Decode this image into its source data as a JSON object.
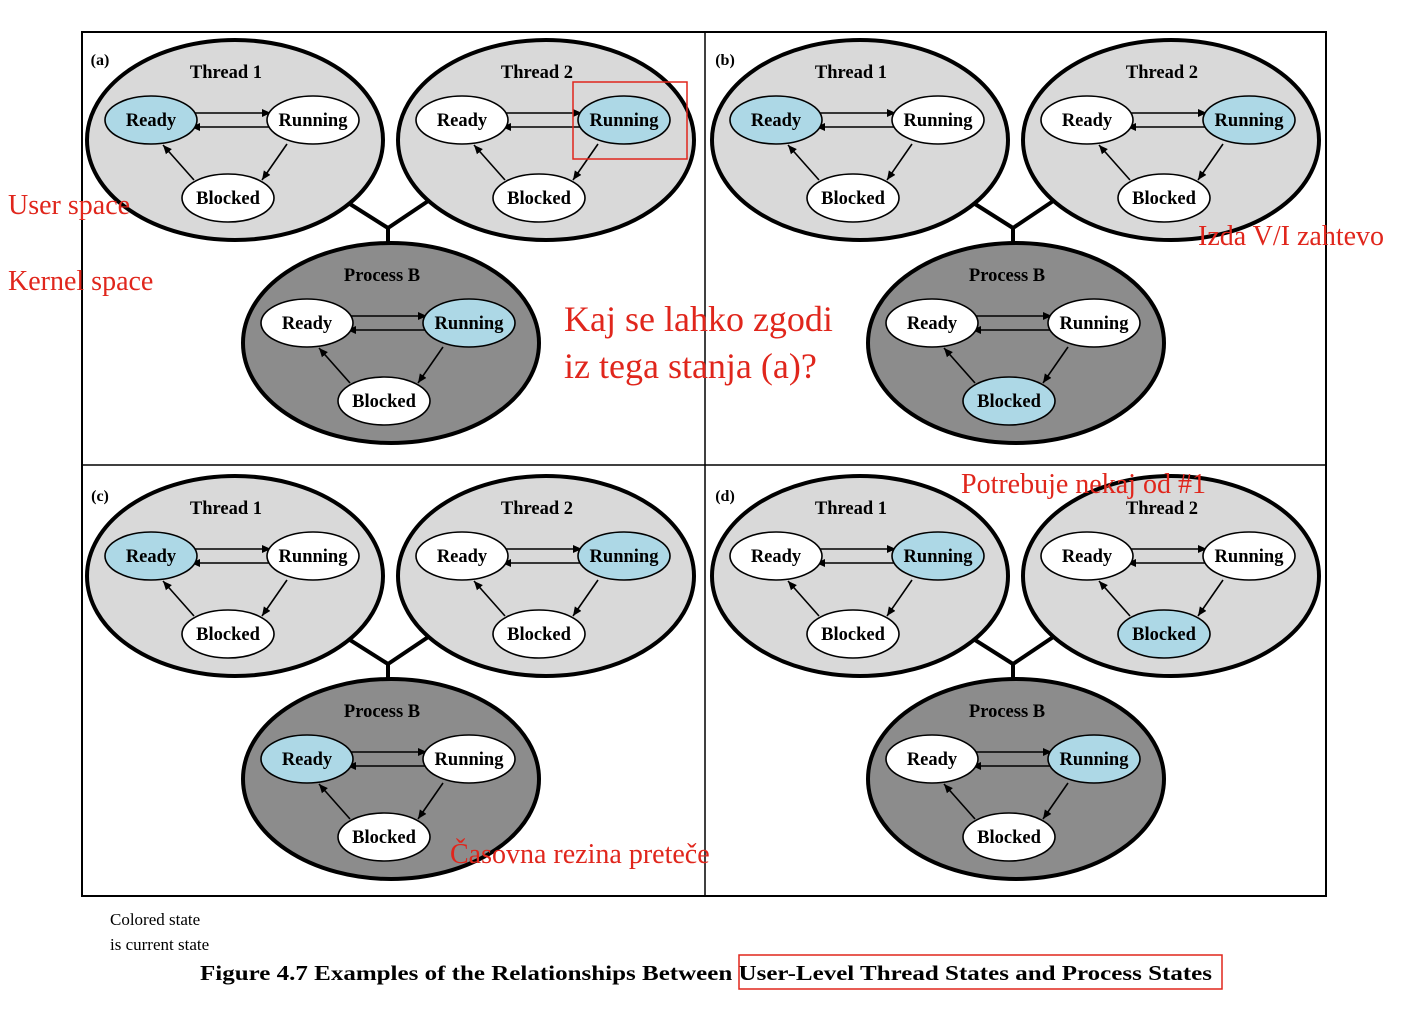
{
  "state_labels": {
    "ready": "Ready",
    "running": "Running",
    "blocked": "Blocked"
  },
  "group_labels": {
    "thread1": "Thread 1",
    "thread2": "Thread 2",
    "process": "Process B"
  },
  "panels": [
    {
      "id": "a",
      "label": "(a)",
      "thread1": "ready",
      "thread2": "running",
      "process": "running"
    },
    {
      "id": "b",
      "label": "(b)",
      "thread1": "ready",
      "thread2": "running",
      "process": "blocked"
    },
    {
      "id": "c",
      "label": "(c)",
      "thread1": "ready",
      "thread2": "running",
      "process": "ready"
    },
    {
      "id": "d",
      "label": "(d)",
      "thread1": "running",
      "thread2": "blocked",
      "process": "running"
    }
  ],
  "colors": {
    "current": "#add8e6",
    "state_default": "#ffffff",
    "thread_fill": "#d9d9d9",
    "process_fill": "#8c8c8c",
    "annotation": "#e0261c"
  },
  "legend": {
    "line1": "Colored state",
    "line2": "is current state"
  },
  "caption": {
    "prefix": "Figure 4.7   Examples of the Relationships Between ",
    "highlight": "User-Level Thread States and Process States"
  },
  "annotations": {
    "user_space": "User space",
    "kernel_space": "Kernel space",
    "question_line1": "Kaj se lahko zgodi",
    "question_line2": "iz tega stanja (a)?",
    "io_request": "Izda V/I zahtevo",
    "needs_from_1": "Potrebuje nekaj od #1",
    "timeslice": "Časovna rezina preteče"
  }
}
